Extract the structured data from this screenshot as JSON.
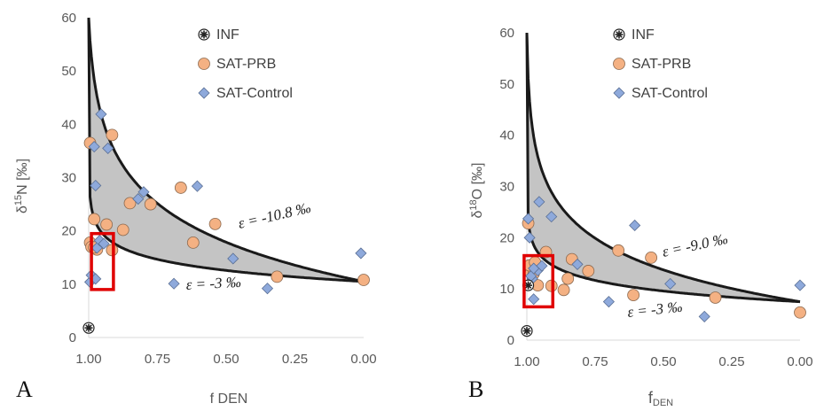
{
  "chart_data": [
    {
      "type": "scatter",
      "panel": "A",
      "xlabel": "f DEN",
      "ylabel_main": "δ",
      "ylabel_sup": "15",
      "ylabel_rest": "N [‰]",
      "xlim": [
        1.0,
        0.0
      ],
      "ylim": [
        0,
        60
      ],
      "x_ticks": [
        "1.00",
        "0.75",
        "0.50",
        "0.25",
        "0.00"
      ],
      "y_ticks": [
        "0",
        "10",
        "20",
        "30",
        "40",
        "50",
        "60"
      ],
      "legend": [
        "INF",
        "SAT-PRB",
        "SAT-Control"
      ],
      "legend_position": "top-right",
      "annotations": [
        "ε = -10.8 ‰",
        "ε = -3 ‰"
      ],
      "envelope": {
        "start_x": 1.0,
        "start_y": 60,
        "end_y": 10.5,
        "upper_eps": -10.8,
        "lower_eps": -3
      },
      "highlight_box": {
        "x": [
          0.99,
          0.91
        ],
        "y": [
          9,
          19.5
        ]
      },
      "series": [
        {
          "name": "INF",
          "marker": "asterisk",
          "points": [
            [
              1.0,
              1.8
            ]
          ]
        },
        {
          "name": "SAT-PRB",
          "marker": "circle",
          "color": "#f4b183",
          "points": [
            [
              0.995,
              36.5
            ],
            [
              0.98,
              22.2
            ],
            [
              0.97,
              16.5
            ],
            [
              0.935,
              21.2
            ],
            [
              0.915,
              38.0
            ],
            [
              0.915,
              16.4
            ],
            [
              0.875,
              20.2
            ],
            [
              0.85,
              25.2
            ],
            [
              0.775,
              25.0
            ],
            [
              0.665,
              28.1
            ],
            [
              0.62,
              17.8
            ],
            [
              0.54,
              21.3
            ],
            [
              0.315,
              11.4
            ],
            [
              0.995,
              17.8
            ],
            [
              0.99,
              17.0
            ],
            [
              0.98,
              16.9
            ],
            [
              0.0,
              10.8
            ]
          ]
        },
        {
          "name": "SAT-Control",
          "marker": "diamond",
          "color": "#8ea9db",
          "points": [
            [
              0.995,
              10.4
            ],
            [
              0.99,
              11.7
            ],
            [
              0.98,
              35.8
            ],
            [
              0.975,
              28.5
            ],
            [
              0.97,
              16.8
            ],
            [
              0.96,
              18.2
            ],
            [
              0.955,
              41.9
            ],
            [
              0.945,
              17.6
            ],
            [
              0.93,
              35.5
            ],
            [
              0.8,
              27.3
            ],
            [
              0.82,
              26.0
            ],
            [
              0.605,
              28.4
            ],
            [
              0.475,
              14.8
            ],
            [
              0.69,
              10.1
            ],
            [
              0.35,
              9.2
            ],
            [
              0.01,
              15.8
            ],
            [
              0.975,
              11.0
            ]
          ]
        }
      ]
    },
    {
      "type": "scatter",
      "panel": "B",
      "xlabel_main": "f",
      "xlabel_sub": "DEN",
      "ylabel_main": "δ",
      "ylabel_sup": "18",
      "ylabel_rest": "O [‰]",
      "xlim": [
        1.0,
        0.0
      ],
      "ylim": [
        0,
        60
      ],
      "x_ticks": [
        "1.00",
        "0.75",
        "0.50",
        "0.25",
        "0.00"
      ],
      "y_ticks": [
        "0",
        "10",
        "20",
        "30",
        "40",
        "50",
        "60"
      ],
      "legend": [
        "INF",
        "SAT-PRB",
        "SAT-Control"
      ],
      "legend_position": "top-right",
      "annotations": [
        "ε = -9.0 ‰",
        "ε = -3 ‰"
      ],
      "envelope": {
        "start_x": 1.0,
        "start_y": 60,
        "end_y": 7.5,
        "upper_eps": -9.0,
        "lower_eps": -3
      },
      "highlight_box": {
        "x": [
          1.01,
          0.905
        ],
        "y": [
          6.5,
          16.5
        ]
      },
      "series": [
        {
          "name": "INF",
          "marker": "asterisk",
          "points": [
            [
              1.0,
              1.8
            ],
            [
              0.995,
              10.7
            ]
          ]
        },
        {
          "name": "SAT-PRB",
          "marker": "circle",
          "color": "#f4b183",
          "points": [
            [
              0.995,
              22.8
            ],
            [
              0.985,
              13.1
            ],
            [
              0.975,
              13.0
            ],
            [
              0.96,
              10.7
            ],
            [
              0.93,
              17.2
            ],
            [
              0.91,
              10.6
            ],
            [
              0.865,
              9.8
            ],
            [
              0.85,
              12.0
            ],
            [
              0.835,
              15.8
            ],
            [
              0.775,
              13.5
            ],
            [
              0.665,
              17.5
            ],
            [
              0.61,
              8.8
            ],
            [
              0.545,
              16.1
            ],
            [
              0.31,
              8.3
            ],
            [
              0.0,
              5.4
            ],
            [
              0.99,
              14.6
            ],
            [
              0.97,
              15.2
            ]
          ]
        },
        {
          "name": "SAT-Control",
          "marker": "diamond",
          "color": "#8ea9db",
          "points": [
            [
              0.995,
              23.7
            ],
            [
              0.99,
              20.0
            ],
            [
              0.98,
              12.0
            ],
            [
              0.975,
              8.0
            ],
            [
              0.96,
              13.6
            ],
            [
              0.955,
              27.0
            ],
            [
              0.945,
              14.5
            ],
            [
              0.91,
              24.1
            ],
            [
              0.815,
              14.8
            ],
            [
              0.605,
              22.4
            ],
            [
              0.475,
              11.0
            ],
            [
              0.7,
              7.5
            ],
            [
              0.35,
              4.6
            ],
            [
              0.0,
              10.7
            ],
            [
              0.985,
              12.5
            ],
            [
              0.975,
              14.0
            ]
          ]
        }
      ]
    }
  ]
}
